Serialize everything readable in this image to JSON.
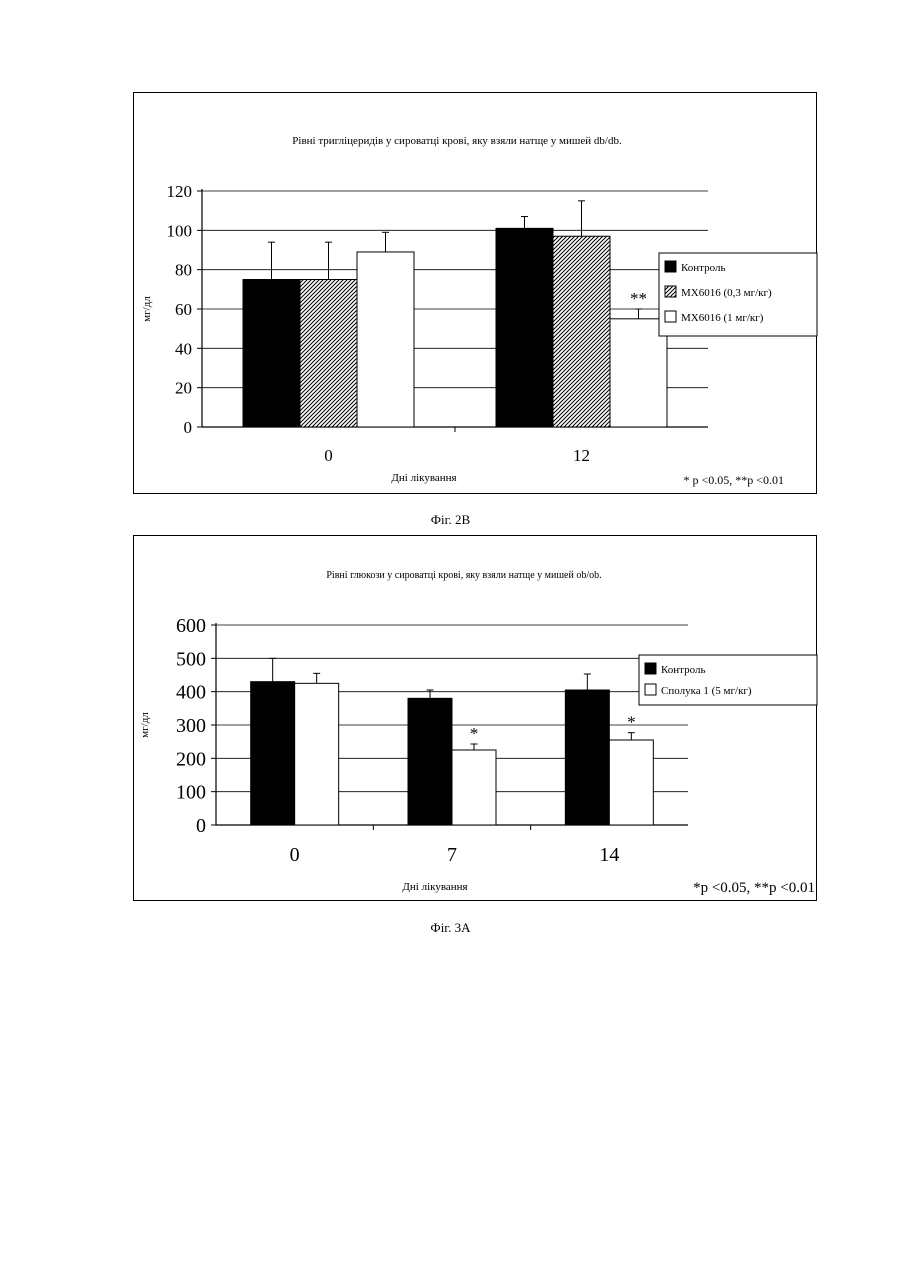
{
  "chart_data": [
    {
      "type": "bar",
      "title": "Рівні тригліцеридів у сироватці крові, яку взяли натще у мишей db/db.",
      "xlabel": "Дні лікування",
      "ylabel": "мг/дл",
      "categories": [
        "0",
        "12"
      ],
      "ylim": [
        0,
        120
      ],
      "yticks": [
        "0",
        "20",
        "40",
        "60",
        "80",
        "100",
        "120"
      ],
      "grid": true,
      "legend_position": "right",
      "series": [
        {
          "name": "Контроль",
          "values": [
            75,
            101
          ],
          "errors": [
            19,
            6
          ],
          "fill": "solid",
          "color": "#000000"
        },
        {
          "name": "MX6016 (0,3 мг/кг)",
          "values": [
            75,
            97
          ],
          "errors": [
            19,
            18
          ],
          "fill": "hatch",
          "color": "#000000"
        },
        {
          "name": "MX6016 (1 мг/кг)",
          "values": [
            89,
            55
          ],
          "errors": [
            10,
            5
          ],
          "fill": "white",
          "color": "#000000"
        }
      ],
      "annotations": [
        {
          "series": 2,
          "category": 1,
          "text": "**"
        }
      ],
      "footnote": "* p <0.05, **p <0.01",
      "caption": "Фіг. 2B"
    },
    {
      "type": "bar",
      "title": "Рівні глюкози у сироватці крові, яку взяли натще у мишей ob/ob.",
      "xlabel": "Дні лікування",
      "ylabel": "мг/дл",
      "categories": [
        "0",
        "7",
        "14"
      ],
      "ylim": [
        0,
        600
      ],
      "yticks": [
        "0",
        "100",
        "200",
        "300",
        "400",
        "500",
        "600"
      ],
      "grid": true,
      "legend_position": "right",
      "series": [
        {
          "name": "Контроль",
          "values": [
            430,
            380,
            405
          ],
          "errors": [
            70,
            25,
            48
          ],
          "fill": "solid",
          "color": "#000000"
        },
        {
          "name": "Сполука 1 (5 мг/кг)",
          "values": [
            425,
            225,
            255
          ],
          "errors": [
            30,
            18,
            22
          ],
          "fill": "white",
          "color": "#000000"
        }
      ],
      "annotations": [
        {
          "series": 1,
          "category": 1,
          "text": "*"
        },
        {
          "series": 1,
          "category": 2,
          "text": "*"
        }
      ],
      "footnote": "*p <0.05, **p <0.01",
      "caption": "Фіг. 3A"
    }
  ]
}
